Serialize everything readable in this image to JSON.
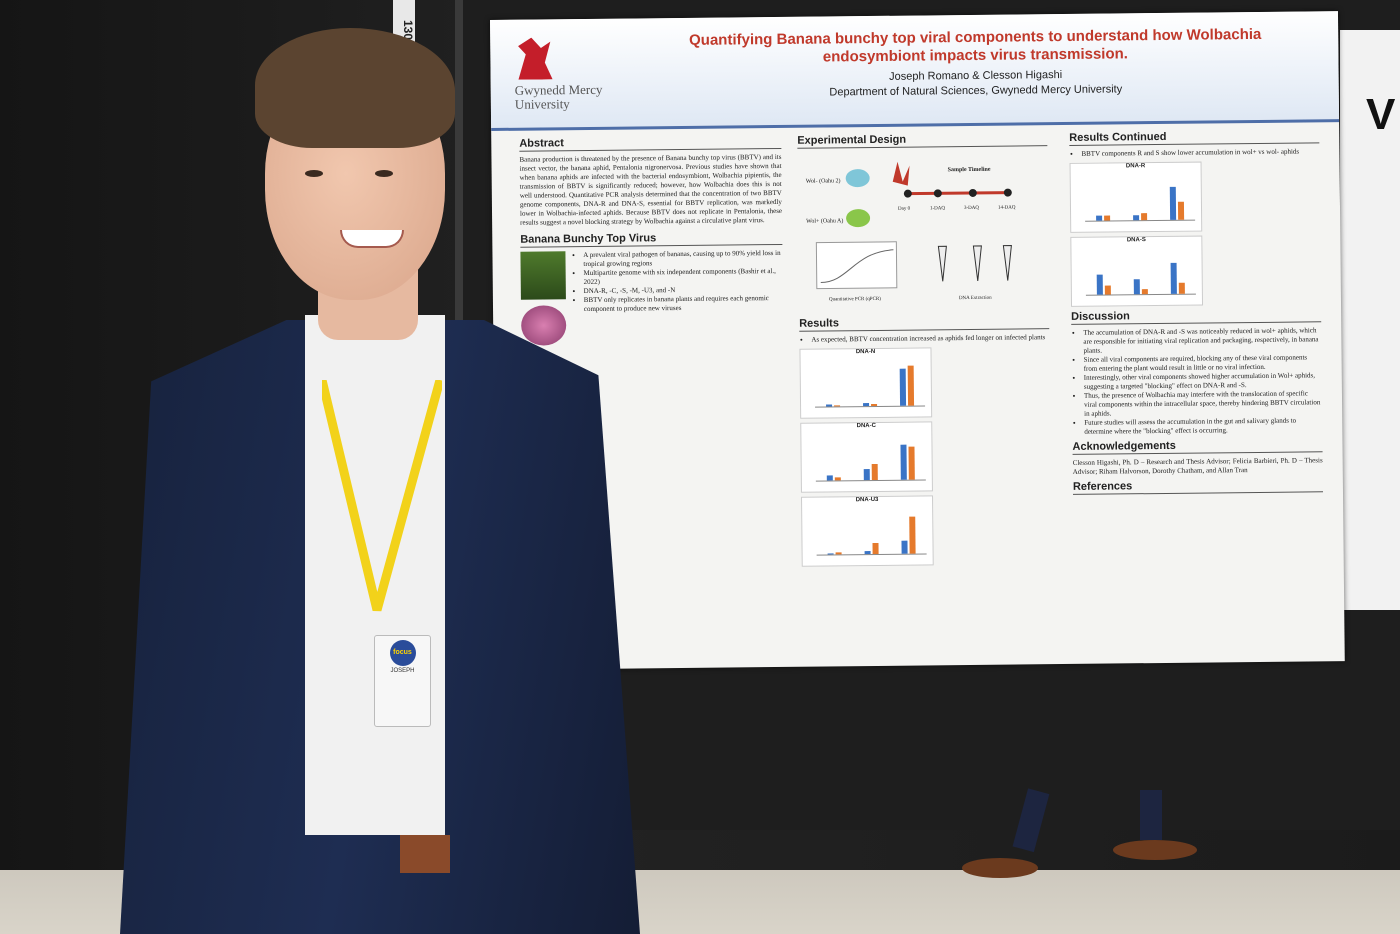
{
  "poster": {
    "title_line1": "Quantifying Banana bunchy top viral components to understand how Wolbachia",
    "title_line2": "endosymbiont impacts virus transmission.",
    "authors": "Joseph Romano & Clesson Higashi",
    "department": "Department of Natural Sciences, Gwynedd Mercy University",
    "logo_name_line1": "Gwynedd Mercy",
    "logo_name_line2": "University",
    "sections": {
      "abstract_title": "Abstract",
      "abstract_text": "Banana production is threatened by the presence of Banana bunchy top virus (BBTV) and its insect vector, the banana aphid, Pentalonia nigronervosa. Previous studies have shown that when banana aphids are infected with the bacterial endosymbiont, Wolbachia pipientis, the transmission of BBTV is significantly reduced; however, how Wolbachia does this is not well understood. Quantitative PCR analysis determined that the concentration of two BBTV genome components, DNA-R and DNA-S, essential for BBTV replication, was markedly lower in Wolbachia-infected aphids. Because BBTV does not replicate in Pentalonia, these results suggest a novel blocking strategy by Wolbachia against a circulative plant virus.",
      "bbtv_title": "Banana Bunchy Top Virus",
      "bbtv_bullets": [
        "A prevalent viral pathogen of bananas, causing up to 90% yield loss in tropical growing regions",
        "Multipartite genome with six independent components (Bashir et al., 2022)",
        "DNA-R, -C, -S, -M, -U3, and -N",
        "BBTV only replicates in banana plants and requires each genomic component to produce new viruses"
      ],
      "experimental_title": "Experimental Design",
      "results_title": "Results",
      "results_continued_title": "Results Continued",
      "discussion_title": "Discussion",
      "acknowledgements_title": "Acknowledgements",
      "references_title": "References",
      "acknowledgements_text": "Clesson Higashi, Ph. D – Research and Thesis Advisor; Felicia Barbieri, Ph. D – Thesis Advisor; Riham Halvorson, Dorothy Chatham, and Allan Tran",
      "discussion_bullets": [
        "The accumulation of DNA-R and -S was noticeably reduced in wol+ aphids, which are responsible for initiating viral replication and packaging, respectively, in banana plants.",
        "Since all viral components are required, blocking any of these viral components from entering the plant would result in little or no viral infection.",
        "Interestingly, other viral components showed higher accumulation in Wol+ aphids, suggesting a targeted \"blocking\" effect on DNA-R and -S.",
        "Thus, the presence of Wolbachia may interfere with the translocation of specific viral components within the intracellular space, thereby hindering BBTV circulation in aphids.",
        "Future studies will assess the accumulation in the gut and salivary glands to determine where the \"blocking\" effect is occurring."
      ],
      "results_bullet": "As expected, BBTV concentration increased as aphids fed longer on infected plants",
      "results_cont_bullet": "BBTV components R and S show lower accumulation in wol+ vs wol- aphids"
    },
    "charts": [
      {
        "label": "DNA-N",
        "values_wol_minus": [
          2,
          3,
          40
        ],
        "values_wol_plus": [
          1,
          2,
          44
        ]
      },
      {
        "label": "DNA-C",
        "values_wol_minus": [
          6,
          12,
          38
        ],
        "values_wol_plus": [
          3,
          18,
          36
        ]
      },
      {
        "label": "DNA-U3",
        "values_wol_minus": [
          1,
          3,
          14
        ],
        "values_wol_plus": [
          2,
          12,
          40
        ]
      },
      {
        "label": "DNA-R",
        "values_wol_minus": [
          5,
          6,
          36
        ],
        "values_wol_plus": [
          6,
          8,
          20
        ]
      },
      {
        "label": "DNA-S",
        "values_wol_minus": [
          22,
          16,
          34
        ],
        "values_wol_plus": [
          10,
          6,
          12
        ]
      }
    ],
    "diagram": {
      "sample_timeline": "Sample Timeline",
      "wol_minus": "Wol- (Oahu 2)",
      "wol_plus": "Wol+ (Oahu A)",
      "days": [
        "Day 0",
        "1-DAQ",
        "3-DAQ",
        "14-DAQ"
      ],
      "qpcr": "Quantitative PCR (qPCR)",
      "extraction": "DNA Extraction"
    }
  },
  "badge": {
    "name": "JOSEPH",
    "logo": "focus"
  },
  "board_tag": "130",
  "side_poster_letter": "V",
  "colors": {
    "title_red": "#c0392b",
    "wol_minus_blue": "#3a74c6",
    "wol_plus_orange": "#e57a2c",
    "suit_navy": "#1e2d52",
    "lanyard_yellow": "#f2d21a"
  }
}
